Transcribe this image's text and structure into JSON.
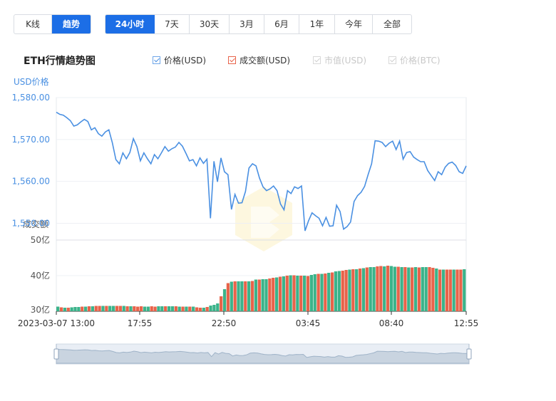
{
  "toolbar": {
    "type_tabs": [
      "K线",
      "趋势"
    ],
    "active_type": "趋势",
    "range_tabs": [
      "24小时",
      "7天",
      "30天",
      "3月",
      "6月",
      "1年",
      "今年",
      "全部"
    ],
    "active_range": "24小时"
  },
  "chart_title": "ETH行情趋势图",
  "legend": [
    {
      "label": "价格(USD)",
      "checked": true,
      "color": "#4a90e2"
    },
    {
      "label": "成交额(USD)",
      "checked": true,
      "color": "#e8634a"
    },
    {
      "label": "市值(USD)",
      "checked": false,
      "color": "#cccccc"
    },
    {
      "label": "价格(BTC)",
      "checked": false,
      "color": "#cccccc"
    }
  ],
  "chart_data": {
    "type": "line",
    "price_axis_label": "USD价格",
    "volume_axis_label": "成交额",
    "price_ticks": [
      "1,580.00",
      "1,570.00",
      "1,560.00",
      "1,550.00"
    ],
    "volume_ticks": [
      "50亿",
      "40亿",
      "30亿"
    ],
    "x_ticks": [
      "2023-03-07 13:00",
      "17:55",
      "22:50",
      "03:45",
      "08:40",
      "12:55"
    ],
    "ylim_price": [
      1546,
      1580
    ],
    "ylim_volume": [
      30,
      50
    ],
    "price_series": {
      "name": "价格(USD)",
      "color": "#4a90e2",
      "values": [
        1576.5,
        1576,
        1575.8,
        1575.2,
        1574.5,
        1573.2,
        1573.5,
        1574.2,
        1574.8,
        1574.3,
        1572.3,
        1572.8,
        1571.4,
        1570.8,
        1571.8,
        1572.3,
        1569.2,
        1565.2,
        1564.2,
        1566.8,
        1565.4,
        1566.9,
        1570.2,
        1568.3,
        1564.9,
        1566.8,
        1565.4,
        1564.2,
        1566.4,
        1565.4,
        1566.8,
        1568.3,
        1567.2,
        1567.8,
        1568.2,
        1569.3,
        1568.4,
        1566.7,
        1564.9,
        1565.2,
        1563.7,
        1565.6,
        1564.3,
        1565.3,
        1551.2,
        1564.8,
        1559.9,
        1565.6,
        1562.3,
        1561.6,
        1553.3,
        1556.9,
        1554.8,
        1554.9,
        1557.6,
        1563.2,
        1564.2,
        1563.7,
        1560.8,
        1558.7,
        1557.8,
        1558.2,
        1558.9,
        1557.8,
        1554.6,
        1553.2,
        1557.8,
        1557.1,
        1558.7,
        1558.3,
        1558.9,
        1548.2,
        1550.6,
        1552.5,
        1551.8,
        1551.2,
        1549.4,
        1551.4,
        1549.3,
        1549.4,
        1554.3,
        1552.8,
        1548.6,
        1549.2,
        1550.3,
        1555.2,
        1556.6,
        1557.4,
        1558.8,
        1561.6,
        1564.2,
        1569.7,
        1569.6,
        1569.3,
        1568.3,
        1569.1,
        1569.6,
        1567.6,
        1569.6,
        1565.3,
        1566.9,
        1567.1,
        1565.8,
        1565.2,
        1564.7,
        1564.7,
        1562.6,
        1561.4,
        1560.2,
        1562.3,
        1561.6,
        1563.4,
        1564.3,
        1564.6,
        1563.8,
        1562.3,
        1561.9,
        1563.7
      ]
    },
    "volume_series": {
      "name": "成交额(USD)",
      "colors": [
        "#e8634a",
        "#3bb38a"
      ],
      "values": [
        31.3,
        31.1,
        31,
        31,
        31.1,
        31.2,
        31.2,
        31.3,
        31.3,
        31.4,
        31.4,
        31.5,
        31.5,
        31.5,
        31.5,
        31.5,
        31.5,
        31.5,
        31.5,
        31.5,
        31.4,
        31.4,
        31.4,
        31.3,
        31.4,
        31.3,
        31.3,
        31.4,
        31.3,
        31.4,
        31.4,
        31.4,
        31.4,
        31.4,
        31.4,
        31.3,
        31.3,
        31.3,
        31.3,
        31.3,
        31.1,
        31,
        31,
        31.2,
        31.6,
        31.8,
        32.2,
        34.2,
        36.2,
        37.9,
        38.3,
        38.4,
        38.4,
        38.4,
        38.4,
        38.4,
        38.5,
        38.9,
        38.9,
        39,
        39,
        39.2,
        39.4,
        39.5,
        39.7,
        39.8,
        40,
        40.1,
        40.1,
        40,
        40,
        40,
        39.9,
        40.2,
        40.4,
        40.5,
        40.5,
        40.6,
        40.8,
        40.9,
        41.2,
        41.3,
        41.4,
        41.6,
        41.7,
        41.8,
        41.8,
        42,
        42.1,
        42.3,
        42.4,
        42.4,
        42.6,
        42.7,
        42.6,
        42.8,
        42.7,
        42.5,
        42.5,
        42.4,
        42.4,
        42.3,
        42.3,
        42.4,
        42.3,
        42.4,
        42.4,
        42.4,
        42.2,
        42,
        41.7,
        41.7,
        41.7,
        41.7,
        41.7,
        41.7,
        41.7,
        41.8
      ],
      "up": [
        1,
        0,
        1,
        0,
        1,
        1,
        1,
        0,
        1,
        0,
        1,
        0,
        0,
        1,
        0,
        1,
        1,
        0,
        0,
        1,
        0,
        1,
        0,
        0,
        0,
        1,
        1,
        0,
        0,
        1,
        1,
        0,
        1,
        1,
        0,
        1,
        0,
        1,
        0,
        1,
        0,
        0,
        1,
        0,
        1,
        1,
        1,
        0,
        1,
        0,
        1,
        0,
        1,
        1,
        0,
        1,
        0,
        1,
        0,
        1,
        1,
        0,
        0,
        1,
        0,
        1,
        0,
        1,
        0,
        1,
        0,
        1,
        0,
        1,
        1,
        0,
        1,
        0,
        1,
        0,
        1,
        1,
        0,
        0,
        1,
        0,
        1,
        0,
        1,
        0,
        1,
        1,
        0,
        0,
        1,
        0,
        1,
        1,
        0,
        1,
        0,
        1,
        0,
        1,
        0,
        1,
        1,
        0,
        0,
        1,
        0,
        1,
        0,
        0,
        1,
        0,
        0,
        1
      ]
    },
    "navigator": {
      "series_color": "#9fb3c8"
    },
    "watermark": "logo"
  }
}
